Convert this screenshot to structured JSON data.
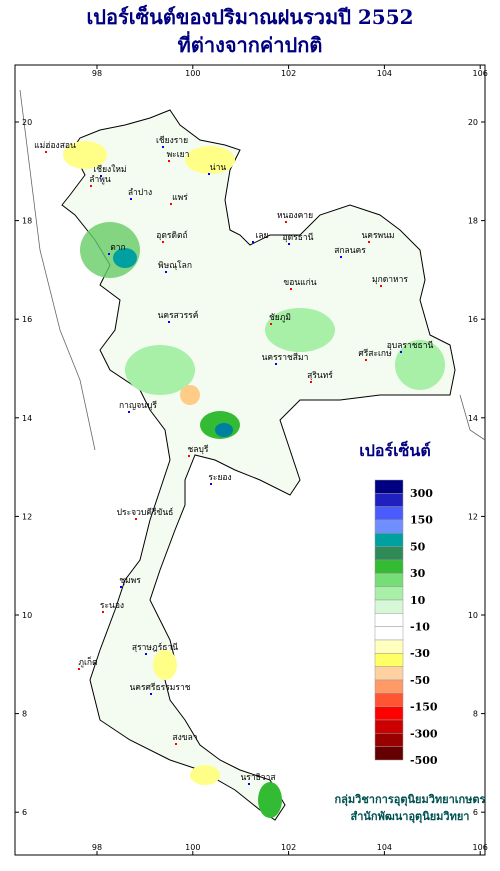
{
  "header": {
    "title_line1": "เปอร์เซ็นต์ของปริมาณฝนรวมปี 2552",
    "title_line2": "ที่ต่างจากค่าปกติ"
  },
  "map": {
    "lon_ticks": [
      98,
      100,
      102,
      104,
      106
    ],
    "lat_ticks": [
      20,
      18,
      16,
      14,
      12,
      10,
      8,
      6
    ],
    "provinces": [
      "เชียงราย",
      "แม่ฮ่องสอน",
      "เชียงใหม่",
      "พะเยา",
      "น่าน",
      "ลำพูน",
      "ลำปาง",
      "แพร่",
      "ตาก",
      "อุตรดิตถ์",
      "พิษณุโลก",
      "หนองคาย",
      "อุดรธานี",
      "นครพนม",
      "สกลนคร",
      "มุกดาหาร",
      "เลย",
      "ขอนแก่น",
      "นครสวรรค์",
      "ชัยภูมิ",
      "นครราชสีมา",
      "สุรินทร์",
      "อุบลราชธานี",
      "ศรีสะเกษ",
      "กาญจนบุรี",
      "ชลบุรี",
      "ระยอง",
      "ประจวบคีรีขันธ์",
      "ชุมพร",
      "ระนอง",
      "สุราษฎร์ธานี",
      "ภูเก็ต",
      "นครศรีธรรมราช",
      "สงขลา",
      "นราธิวาส"
    ]
  },
  "legend": {
    "title": "เปอร์เซ็นต์",
    "colors": [
      "#000080",
      "#2020c0",
      "#4b5cff",
      "#6f8fff",
      "#00a0a0",
      "#2e8b57",
      "#33bb33",
      "#77dd77",
      "#a8f0a8",
      "#d6f8d6",
      "#ffffff",
      "#ffffff",
      "#ffffc0",
      "#ffff66",
      "#ffd0a0",
      "#ff9966",
      "#ff5533",
      "#ff0000",
      "#cc0000",
      "#990000",
      "#660000"
    ],
    "labels": [
      300,
      150,
      50,
      30,
      10,
      -10,
      -30,
      -50,
      -150,
      -300,
      -500
    ]
  },
  "credits": [
    "กลุ่มวิชาการอุตุนิยมวิทยาเกษตร",
    "สำนักพัฒนาอุตุนิยมวิทยา"
  ]
}
